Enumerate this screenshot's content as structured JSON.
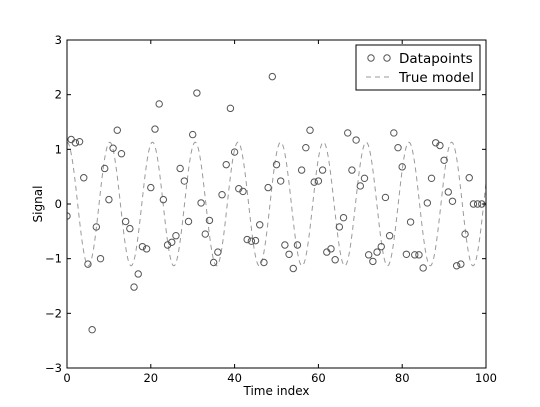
{
  "chart_data": {
    "type": "scatter",
    "xlabel": "Time index",
    "ylabel": "Signal",
    "xlim": [
      0,
      100
    ],
    "ylim": [
      -3,
      3
    ],
    "xticks": [
      "0",
      "20",
      "40",
      "60",
      "80",
      "100"
    ],
    "yticks": [
      "−3",
      "−2",
      "−1",
      "0",
      "1",
      "2",
      "3"
    ],
    "grid": false,
    "legend_position": "top-right",
    "series": [
      {
        "name": "Datapoints",
        "style": "open-circle",
        "color": "#555555",
        "x": [
          0,
          1,
          2,
          3,
          4,
          5,
          6,
          7,
          8,
          9,
          10,
          11,
          12,
          13,
          14,
          15,
          16,
          17,
          18,
          19,
          20,
          21,
          22,
          23,
          24,
          25,
          26,
          27,
          28,
          29,
          30,
          31,
          32,
          33,
          34,
          35,
          36,
          37,
          38,
          39,
          40,
          41,
          42,
          43,
          44,
          45,
          46,
          47,
          48,
          49,
          50,
          51,
          52,
          53,
          54,
          55,
          56,
          57,
          58,
          59,
          60,
          61,
          62,
          63,
          64,
          65,
          66,
          67,
          68,
          69,
          70,
          71,
          72,
          73,
          74,
          75,
          76,
          77,
          78,
          79,
          80,
          81,
          82,
          83,
          84,
          85,
          86,
          87,
          88,
          89,
          90,
          91,
          92,
          93,
          94,
          95,
          96,
          97,
          98,
          99
        ],
        "y": [
          -0.22,
          1.18,
          1.12,
          1.14,
          0.48,
          -1.1,
          -2.3,
          -0.42,
          -1.0,
          0.65,
          0.08,
          1.02,
          1.35,
          0.92,
          -0.32,
          -0.45,
          -1.52,
          -1.28,
          -0.78,
          -0.82,
          0.3,
          1.37,
          1.83,
          0.08,
          -0.75,
          -0.7,
          -0.58,
          0.65,
          0.42,
          -0.32,
          1.27,
          2.03,
          0.02,
          -0.55,
          -0.3,
          -1.07,
          -0.88,
          0.17,
          0.72,
          1.75,
          0.95,
          0.28,
          0.23,
          -0.65,
          -0.68,
          -0.67,
          -0.38,
          -1.07,
          0.3,
          2.33,
          0.72,
          0.42,
          -0.75,
          -0.92,
          -1.18,
          -0.75,
          0.62,
          1.03,
          1.35,
          0.4,
          0.42,
          0.62,
          -0.88,
          -0.82,
          -1.02,
          -0.42,
          -0.25,
          1.3,
          0.62,
          1.17,
          0.33,
          0.47,
          -0.93,
          -1.05,
          -0.88,
          -0.78,
          0.12,
          -0.58,
          1.3,
          1.03,
          0.68,
          -0.92,
          -0.33,
          -0.93,
          -0.93,
          -1.17,
          0.02,
          0.47,
          1.12,
          1.07,
          0.8,
          0.22,
          0.05,
          -1.13,
          -1.1,
          -0.55,
          0.48,
          0.0,
          0.0,
          0.0
        ]
      },
      {
        "name": "True model",
        "style": "dashed-line",
        "color": "#9a9a9a",
        "function": "sine",
        "amplitude": 1.13,
        "period": 10.2,
        "phase_offset_x": 0.0
      }
    ]
  }
}
